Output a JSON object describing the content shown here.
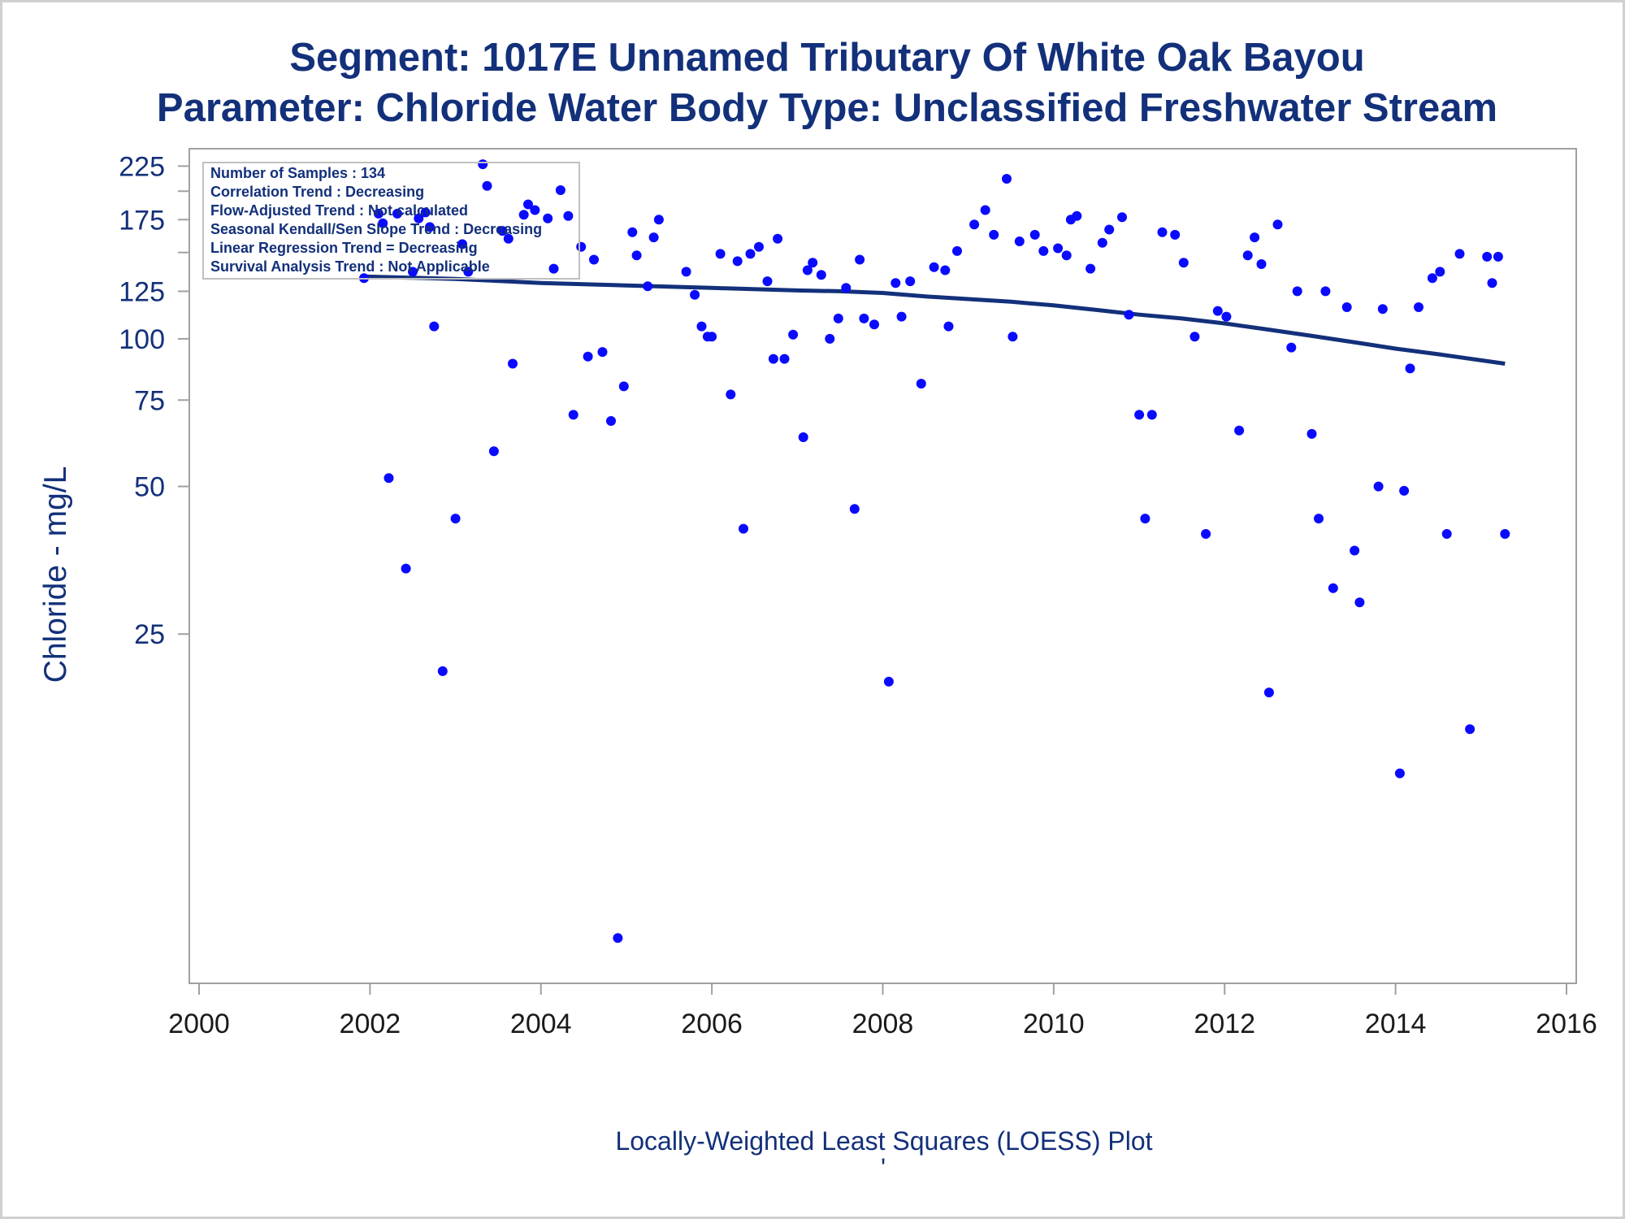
{
  "title": {
    "line1": "Segment: 1017E  Unnamed Tributary Of White Oak Bayou",
    "line2": "Parameter: Chloride   Water Body Type: Unclassified Freshwater Stream"
  },
  "inset": {
    "lines": [
      "Number of Samples : 134",
      "Correlation Trend : Decreasing",
      "Flow-Adjusted Trend : Not calculated",
      "Seasonal Kendall/Sen Slope Trend : Decreasing",
      "Linear Regression Trend = Decreasing",
      "Survival Analysis Trend : Not Applicable"
    ]
  },
  "caption": "Locally-Weighted Least Squares (LOESS) Plot",
  "caption_mark": "'",
  "colors": {
    "text": "#13307a",
    "points": "#0a0aff",
    "trend": "#13307a",
    "frame": "#a0a0a0"
  },
  "chart_data": {
    "type": "scatter",
    "xlabel": "",
    "ylabel": "Chloride - mg/L",
    "xlim": [
      2000,
      2016
    ],
    "x_ticks": [
      2000,
      2002,
      2004,
      2006,
      2008,
      2010,
      2012,
      2014,
      2016
    ],
    "y_scale": "log",
    "ylim": [
      5,
      235
    ],
    "y_ticks": [
      25,
      50,
      75,
      100,
      125,
      175,
      225
    ],
    "y_minor_ticks": [
      150,
      200
    ],
    "grid": false,
    "series": [
      {
        "kind": "points",
        "points": [
          [
            2001.93,
            133
          ],
          [
            2002.1,
            180
          ],
          [
            2002.15,
            172
          ],
          [
            2002.22,
            52
          ],
          [
            2002.32,
            180
          ],
          [
            2002.42,
            34
          ],
          [
            2002.5,
            137
          ],
          [
            2002.57,
            176
          ],
          [
            2002.65,
            181
          ],
          [
            2002.7,
            169
          ],
          [
            2002.75,
            106
          ],
          [
            2002.85,
            21
          ],
          [
            2003.0,
            43
          ],
          [
            2003.08,
            156
          ],
          [
            2003.15,
            137
          ],
          [
            2003.32,
            227
          ],
          [
            2003.37,
            205
          ],
          [
            2003.45,
            59
          ],
          [
            2003.55,
            166
          ],
          [
            2003.62,
            160
          ],
          [
            2003.67,
            89
          ],
          [
            2003.8,
            179
          ],
          [
            2003.85,
            188
          ],
          [
            2003.93,
            183
          ],
          [
            2004.08,
            176
          ],
          [
            2004.15,
            139
          ],
          [
            2004.23,
            201
          ],
          [
            2004.32,
            178
          ],
          [
            2004.38,
            70
          ],
          [
            2004.47,
            154
          ],
          [
            2004.55,
            92
          ],
          [
            2004.62,
            145
          ],
          [
            2004.72,
            94
          ],
          [
            2004.82,
            68
          ],
          [
            2004.9,
            6
          ],
          [
            2004.97,
            80
          ],
          [
            2005.07,
            165
          ],
          [
            2005.12,
            148
          ],
          [
            2005.25,
            128
          ],
          [
            2005.32,
            161
          ],
          [
            2005.38,
            175
          ],
          [
            2005.7,
            137
          ],
          [
            2005.8,
            123
          ],
          [
            2005.88,
            106
          ],
          [
            2005.95,
            101
          ],
          [
            2006.0,
            101
          ],
          [
            2006.1,
            149
          ],
          [
            2006.22,
            77
          ],
          [
            2006.3,
            144
          ],
          [
            2006.37,
            41
          ],
          [
            2006.45,
            149
          ],
          [
            2006.55,
            154
          ],
          [
            2006.65,
            131
          ],
          [
            2006.72,
            91
          ],
          [
            2006.77,
            160
          ],
          [
            2006.85,
            91
          ],
          [
            2006.95,
            102
          ],
          [
            2007.07,
            63
          ],
          [
            2007.12,
            138
          ],
          [
            2007.18,
            143
          ],
          [
            2007.28,
            135
          ],
          [
            2007.38,
            100
          ],
          [
            2007.48,
            110
          ],
          [
            2007.57,
            127
          ],
          [
            2007.67,
            45
          ],
          [
            2007.73,
            145
          ],
          [
            2007.78,
            110
          ],
          [
            2007.9,
            107
          ],
          [
            2008.07,
            20
          ],
          [
            2008.15,
            130
          ],
          [
            2008.22,
            111
          ],
          [
            2008.32,
            131
          ],
          [
            2008.45,
            81
          ],
          [
            2008.6,
            140
          ],
          [
            2008.73,
            138
          ],
          [
            2008.77,
            106
          ],
          [
            2008.87,
            151
          ],
          [
            2009.07,
            171
          ],
          [
            2009.2,
            183
          ],
          [
            2009.3,
            163
          ],
          [
            2009.45,
            212
          ],
          [
            2009.52,
            101
          ],
          [
            2009.6,
            158
          ],
          [
            2009.78,
            163
          ],
          [
            2009.88,
            151
          ],
          [
            2010.05,
            153
          ],
          [
            2010.15,
            148
          ],
          [
            2010.2,
            175
          ],
          [
            2010.27,
            178
          ],
          [
            2010.43,
            139
          ],
          [
            2010.57,
            157
          ],
          [
            2010.65,
            167
          ],
          [
            2010.8,
            177
          ],
          [
            2010.88,
            112
          ],
          [
            2011.0,
            70
          ],
          [
            2011.07,
            43
          ],
          [
            2011.15,
            70
          ],
          [
            2011.27,
            165
          ],
          [
            2011.42,
            163
          ],
          [
            2011.52,
            143
          ],
          [
            2011.65,
            101
          ],
          [
            2011.78,
            40
          ],
          [
            2011.92,
            114
          ],
          [
            2012.02,
            111
          ],
          [
            2012.17,
            65
          ],
          [
            2012.27,
            148
          ],
          [
            2012.35,
            161
          ],
          [
            2012.43,
            142
          ],
          [
            2012.52,
            19
          ],
          [
            2012.62,
            171
          ],
          [
            2012.78,
            96
          ],
          [
            2012.85,
            125
          ],
          [
            2013.02,
            64
          ],
          [
            2013.1,
            43
          ],
          [
            2013.18,
            125
          ],
          [
            2013.27,
            31
          ],
          [
            2013.43,
            116
          ],
          [
            2013.52,
            37
          ],
          [
            2013.58,
            29
          ],
          [
            2013.8,
            50
          ],
          [
            2013.85,
            115
          ],
          [
            2014.05,
            13
          ],
          [
            2014.1,
            49
          ],
          [
            2014.17,
            87
          ],
          [
            2014.27,
            116
          ],
          [
            2014.43,
            133
          ],
          [
            2014.52,
            137
          ],
          [
            2014.6,
            40
          ],
          [
            2014.75,
            149
          ],
          [
            2014.87,
            16
          ],
          [
            2015.07,
            147
          ],
          [
            2015.13,
            130
          ],
          [
            2015.2,
            147
          ],
          [
            2015.28,
            40
          ]
        ]
      },
      {
        "kind": "loess",
        "points": [
          [
            2001.93,
            134
          ],
          [
            2003.0,
            132.5
          ],
          [
            2004.0,
            130
          ],
          [
            2005.0,
            128.5
          ],
          [
            2006.0,
            127
          ],
          [
            2007.0,
            125.5
          ],
          [
            2007.5,
            125
          ],
          [
            2008.0,
            124
          ],
          [
            2008.5,
            122
          ],
          [
            2009.0,
            120.5
          ],
          [
            2009.5,
            119
          ],
          [
            2010.0,
            117
          ],
          [
            2010.5,
            114.5
          ],
          [
            2011.0,
            112
          ],
          [
            2011.5,
            110
          ],
          [
            2012.0,
            107.5
          ],
          [
            2012.5,
            104.5
          ],
          [
            2013.0,
            101.5
          ],
          [
            2013.5,
            98.5
          ],
          [
            2014.0,
            95.5
          ],
          [
            2014.5,
            93
          ],
          [
            2015.28,
            89
          ]
        ]
      }
    ]
  }
}
